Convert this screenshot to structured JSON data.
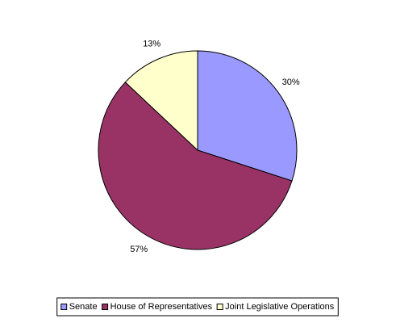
{
  "chart_data": {
    "type": "pie",
    "categories": [
      "Senate",
      "House of Representatives",
      "Joint Legislative Operations"
    ],
    "values": [
      30,
      57,
      13
    ],
    "value_labels": [
      "30%",
      "57%",
      "13%"
    ],
    "colors": [
      "#9999ff",
      "#993366",
      "#ffffcc"
    ],
    "legend": "bottom"
  }
}
